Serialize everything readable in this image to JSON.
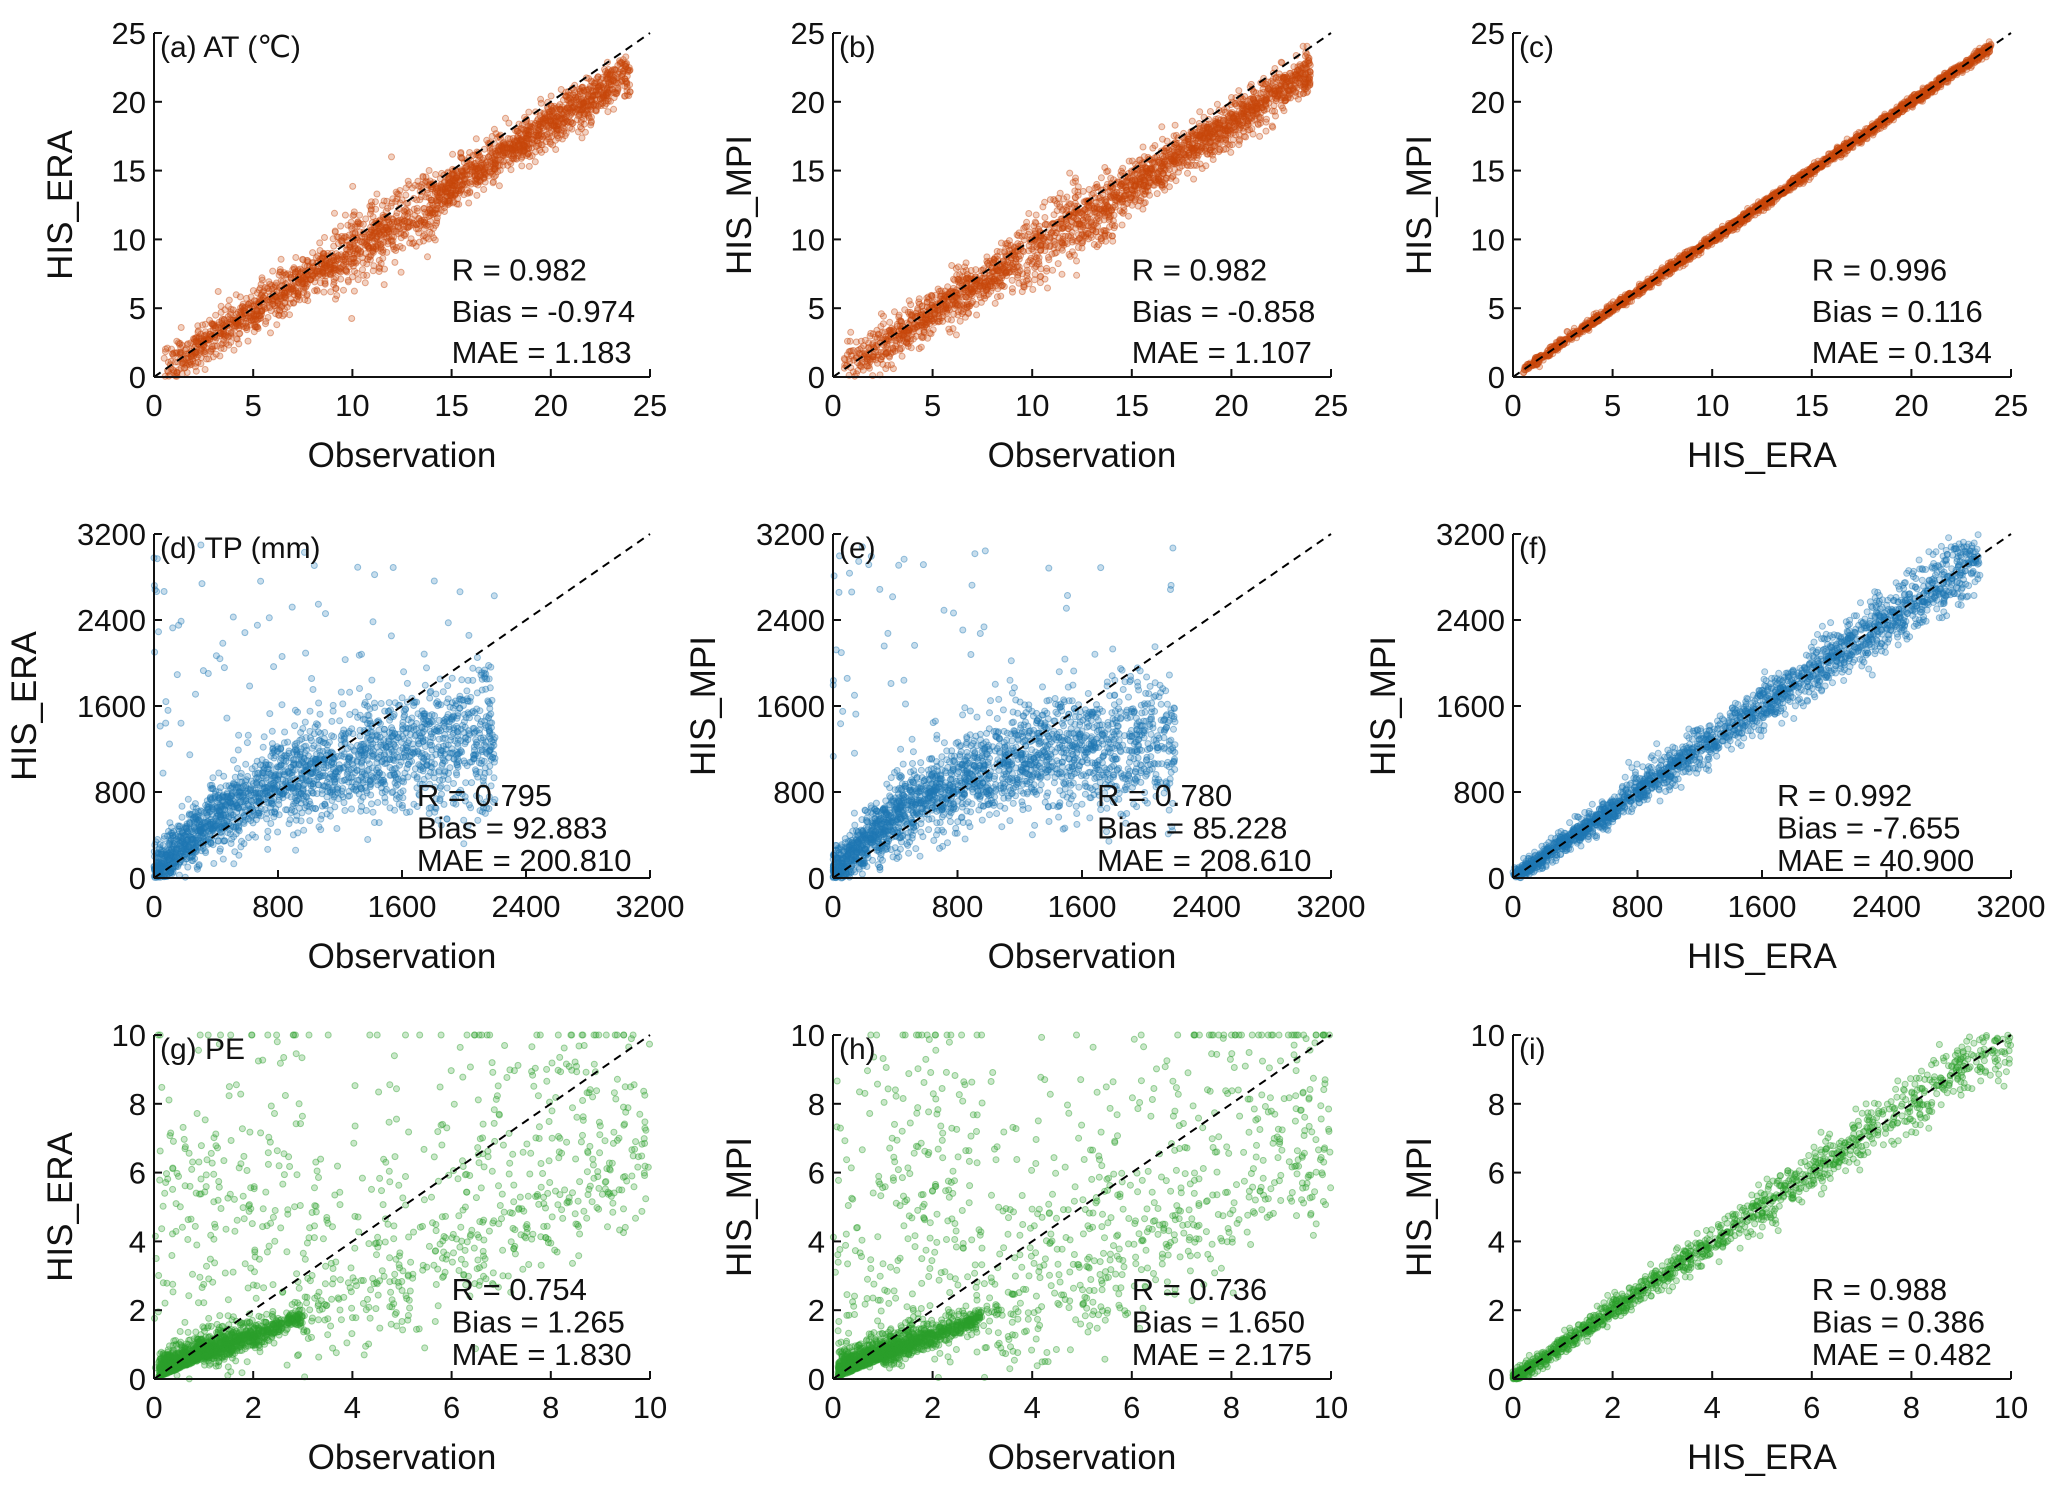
{
  "colors": {
    "AT": "#c8470c",
    "TP": "#1f77b4",
    "PE": "#2ca02c",
    "axis": "#111111",
    "identity_line": "#000000"
  },
  "chart_data": [
    {
      "type": "scatter",
      "panel": "a",
      "label": "(a) AT (℃)",
      "variable": "AT",
      "xlabel": "Observation",
      "ylabel": "HIS_ERA",
      "xlim": [
        0,
        25
      ],
      "ylim": [
        0,
        25
      ],
      "ticks": [
        "0",
        "5",
        "10",
        "15",
        "20",
        "25"
      ],
      "stats": [
        "R = 0.982",
        "Bias = -0.974",
        "MAE = 1.183"
      ],
      "identity_line": true
    },
    {
      "type": "scatter",
      "panel": "b",
      "label": "(b)",
      "variable": "AT",
      "xlabel": "Observation",
      "ylabel": "HIS_MPI",
      "xlim": [
        0,
        25
      ],
      "ylim": [
        0,
        25
      ],
      "ticks": [
        "0",
        "5",
        "10",
        "15",
        "20",
        "25"
      ],
      "stats": [
        "R = 0.982",
        "Bias = -0.858",
        "MAE = 1.107"
      ],
      "identity_line": true
    },
    {
      "type": "scatter",
      "panel": "c",
      "label": "(c)",
      "variable": "AT",
      "xlabel": "HIS_ERA",
      "ylabel": "HIS_MPI",
      "xlim": [
        0,
        25
      ],
      "ylim": [
        0,
        25
      ],
      "ticks": [
        "0",
        "5",
        "10",
        "15",
        "20",
        "25"
      ],
      "stats": [
        "R = 0.996",
        "Bias = 0.116",
        "MAE = 0.134"
      ],
      "identity_line": true
    },
    {
      "type": "scatter",
      "panel": "d",
      "label": "(d) TP (mm)",
      "variable": "TP",
      "xlabel": "Observation",
      "ylabel": "HIS_ERA",
      "xlim": [
        0,
        3200
      ],
      "ylim": [
        0,
        3200
      ],
      "ticks": [
        "0",
        "800",
        "1600",
        "2400",
        "3200"
      ],
      "stats": [
        "R = 0.795",
        "Bias = 92.883",
        "MAE = 200.810"
      ],
      "identity_line": true
    },
    {
      "type": "scatter",
      "panel": "e",
      "label": "(e)",
      "variable": "TP",
      "xlabel": "Observation",
      "ylabel": "HIS_MPI",
      "xlim": [
        0,
        3200
      ],
      "ylim": [
        0,
        3200
      ],
      "ticks": [
        "0",
        "800",
        "1600",
        "2400",
        "3200"
      ],
      "stats": [
        "R = 0.780",
        "Bias = 85.228",
        "MAE = 208.610"
      ],
      "identity_line": true
    },
    {
      "type": "scatter",
      "panel": "f",
      "label": "(f)",
      "variable": "TP",
      "xlabel": "HIS_ERA",
      "ylabel": "HIS_MPI",
      "xlim": [
        0,
        3200
      ],
      "ylim": [
        0,
        3200
      ],
      "ticks": [
        "0",
        "800",
        "1600",
        "2400",
        "3200"
      ],
      "stats": [
        "R = 0.992",
        "Bias = -7.655",
        "MAE = 40.900"
      ],
      "identity_line": true
    },
    {
      "type": "scatter",
      "panel": "g",
      "label": "(g) PE",
      "variable": "PE",
      "xlabel": "Observation",
      "ylabel": "HIS_ERA",
      "xlim": [
        0,
        10
      ],
      "ylim": [
        0,
        10
      ],
      "ticks": [
        "0",
        "2",
        "4",
        "6",
        "8",
        "10"
      ],
      "stats": [
        "R = 0.754",
        "Bias = 1.265",
        "MAE = 1.830"
      ],
      "identity_line": true
    },
    {
      "type": "scatter",
      "panel": "h",
      "label": "(h)",
      "variable": "PE",
      "xlabel": "Observation",
      "ylabel": "HIS_MPI",
      "xlim": [
        0,
        10
      ],
      "ylim": [
        0,
        10
      ],
      "ticks": [
        "0",
        "2",
        "4",
        "6",
        "8",
        "10"
      ],
      "stats": [
        "R = 0.736",
        "Bias = 1.650",
        "MAE = 2.175"
      ],
      "identity_line": true
    },
    {
      "type": "scatter",
      "panel": "i",
      "label": "(i)",
      "variable": "PE",
      "xlabel": "HIS_ERA",
      "ylabel": "HIS_MPI",
      "xlim": [
        0,
        10
      ],
      "ylim": [
        0,
        10
      ],
      "ticks": [
        "0",
        "2",
        "4",
        "6",
        "8",
        "10"
      ],
      "stats": [
        "R = 0.988",
        "Bias = 0.386",
        "MAE = 0.482"
      ],
      "identity_line": true
    }
  ]
}
